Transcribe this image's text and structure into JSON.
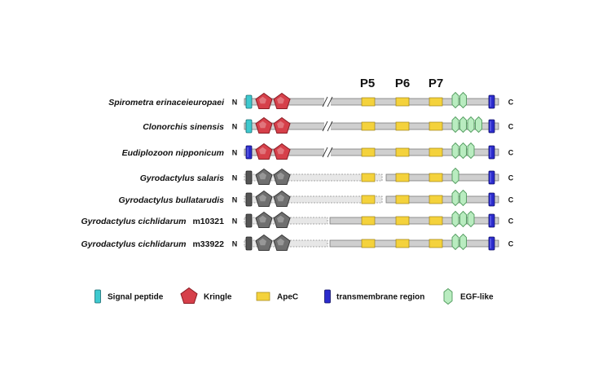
{
  "position_labels": [
    "P5",
    "P6",
    "P7"
  ],
  "terminals": {
    "n": "N",
    "c": "C"
  },
  "colors": {
    "backbone": "#cfcfcf",
    "backbone_stroke": "#7a7a7a",
    "signal_peptide": "#3ec9cf",
    "kringle": "#d6404a",
    "kringle_grey": "#6f6f6f",
    "apec": "#f4d23c",
    "transmembrane": "#2b2bcc",
    "egf": "#b9ecc0",
    "egf_stroke": "#4f9a5c"
  },
  "proteins": [
    {
      "species": "Spirometra erinaceieuropaei",
      "suffix": "",
      "start_domain": "signal_peptide",
      "kringle_style": "red",
      "segments": "continuous",
      "gap_break": true,
      "egf_count": 2
    },
    {
      "species": "Clonorchis sinensis",
      "suffix": "",
      "start_domain": "signal_peptide",
      "kringle_style": "red",
      "segments": "continuous",
      "gap_break": true,
      "egf_count": 4
    },
    {
      "species": "Eudiplozoon nipponicum",
      "suffix": "",
      "start_domain": "transmembrane",
      "kringle_style": "red",
      "segments": "continuous",
      "gap_break": true,
      "egf_count": 3
    },
    {
      "species": "Gyrodactylus salaris",
      "suffix": "",
      "start_domain": "grey_box",
      "kringle_style": "grey",
      "segments": "dashed_long",
      "gap_break": false,
      "egf_count": 1
    },
    {
      "species": "Gyrodactylus bullatarudis",
      "suffix": "",
      "start_domain": "grey_box",
      "kringle_style": "grey",
      "segments": "dashed_long",
      "gap_break": false,
      "egf_count": 2
    },
    {
      "species": "Gyrodactylus cichlidarum",
      "suffix": "m10321",
      "start_domain": "grey_box",
      "kringle_style": "grey",
      "segments": "dashed_short",
      "gap_break": false,
      "egf_count": 3
    },
    {
      "species": "Gyrodactylus cichlidarum",
      "suffix": "m33922",
      "start_domain": "grey_box",
      "kringle_style": "grey",
      "segments": "dashed_short",
      "gap_break": false,
      "egf_count": 2
    }
  ],
  "legend": [
    {
      "key": "signal_peptide",
      "label": "Signal peptide"
    },
    {
      "key": "kringle",
      "label": "Kringle"
    },
    {
      "key": "apec",
      "label": "ApeC"
    },
    {
      "key": "transmembrane",
      "label": "transmembrane region"
    },
    {
      "key": "egf",
      "label": "EGF-like"
    }
  ]
}
